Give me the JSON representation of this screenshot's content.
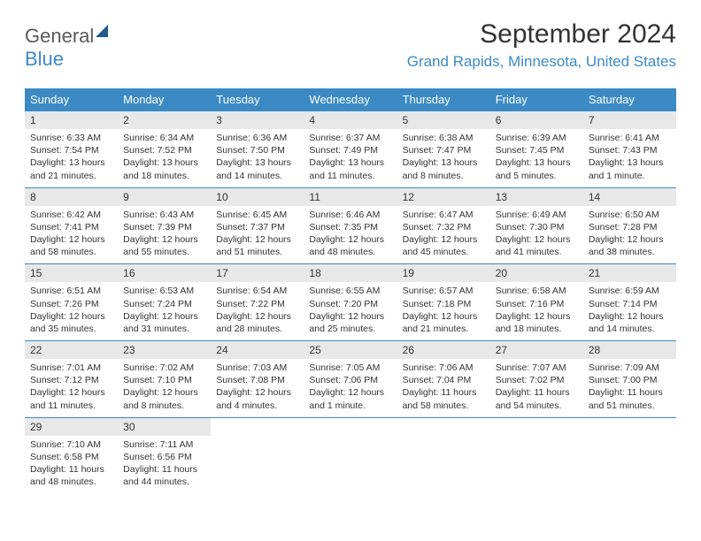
{
  "logo": {
    "part1": "General",
    "part2": "Blue"
  },
  "header": {
    "month_title": "September 2024",
    "location": "Grand Rapids, Minnesota, United States"
  },
  "day_names": [
    "Sunday",
    "Monday",
    "Tuesday",
    "Wednesday",
    "Thursday",
    "Friday",
    "Saturday"
  ],
  "colors": {
    "header_bg": "#3b8ac4",
    "header_text": "#ffffff",
    "daynum_bg": "#e8e8e8",
    "border": "#3b8ac4",
    "text": "#333333",
    "location_text": "#3b8ac4"
  },
  "weeks": [
    [
      {
        "num": "1",
        "sunrise": "Sunrise: 6:33 AM",
        "sunset": "Sunset: 7:54 PM",
        "daylight": "Daylight: 13 hours and 21 minutes."
      },
      {
        "num": "2",
        "sunrise": "Sunrise: 6:34 AM",
        "sunset": "Sunset: 7:52 PM",
        "daylight": "Daylight: 13 hours and 18 minutes."
      },
      {
        "num": "3",
        "sunrise": "Sunrise: 6:36 AM",
        "sunset": "Sunset: 7:50 PM",
        "daylight": "Daylight: 13 hours and 14 minutes."
      },
      {
        "num": "4",
        "sunrise": "Sunrise: 6:37 AM",
        "sunset": "Sunset: 7:49 PM",
        "daylight": "Daylight: 13 hours and 11 minutes."
      },
      {
        "num": "5",
        "sunrise": "Sunrise: 6:38 AM",
        "sunset": "Sunset: 7:47 PM",
        "daylight": "Daylight: 13 hours and 8 minutes."
      },
      {
        "num": "6",
        "sunrise": "Sunrise: 6:39 AM",
        "sunset": "Sunset: 7:45 PM",
        "daylight": "Daylight: 13 hours and 5 minutes."
      },
      {
        "num": "7",
        "sunrise": "Sunrise: 6:41 AM",
        "sunset": "Sunset: 7:43 PM",
        "daylight": "Daylight: 13 hours and 1 minute."
      }
    ],
    [
      {
        "num": "8",
        "sunrise": "Sunrise: 6:42 AM",
        "sunset": "Sunset: 7:41 PM",
        "daylight": "Daylight: 12 hours and 58 minutes."
      },
      {
        "num": "9",
        "sunrise": "Sunrise: 6:43 AM",
        "sunset": "Sunset: 7:39 PM",
        "daylight": "Daylight: 12 hours and 55 minutes."
      },
      {
        "num": "10",
        "sunrise": "Sunrise: 6:45 AM",
        "sunset": "Sunset: 7:37 PM",
        "daylight": "Daylight: 12 hours and 51 minutes."
      },
      {
        "num": "11",
        "sunrise": "Sunrise: 6:46 AM",
        "sunset": "Sunset: 7:35 PM",
        "daylight": "Daylight: 12 hours and 48 minutes."
      },
      {
        "num": "12",
        "sunrise": "Sunrise: 6:47 AM",
        "sunset": "Sunset: 7:32 PM",
        "daylight": "Daylight: 12 hours and 45 minutes."
      },
      {
        "num": "13",
        "sunrise": "Sunrise: 6:49 AM",
        "sunset": "Sunset: 7:30 PM",
        "daylight": "Daylight: 12 hours and 41 minutes."
      },
      {
        "num": "14",
        "sunrise": "Sunrise: 6:50 AM",
        "sunset": "Sunset: 7:28 PM",
        "daylight": "Daylight: 12 hours and 38 minutes."
      }
    ],
    [
      {
        "num": "15",
        "sunrise": "Sunrise: 6:51 AM",
        "sunset": "Sunset: 7:26 PM",
        "daylight": "Daylight: 12 hours and 35 minutes."
      },
      {
        "num": "16",
        "sunrise": "Sunrise: 6:53 AM",
        "sunset": "Sunset: 7:24 PM",
        "daylight": "Daylight: 12 hours and 31 minutes."
      },
      {
        "num": "17",
        "sunrise": "Sunrise: 6:54 AM",
        "sunset": "Sunset: 7:22 PM",
        "daylight": "Daylight: 12 hours and 28 minutes."
      },
      {
        "num": "18",
        "sunrise": "Sunrise: 6:55 AM",
        "sunset": "Sunset: 7:20 PM",
        "daylight": "Daylight: 12 hours and 25 minutes."
      },
      {
        "num": "19",
        "sunrise": "Sunrise: 6:57 AM",
        "sunset": "Sunset: 7:18 PM",
        "daylight": "Daylight: 12 hours and 21 minutes."
      },
      {
        "num": "20",
        "sunrise": "Sunrise: 6:58 AM",
        "sunset": "Sunset: 7:16 PM",
        "daylight": "Daylight: 12 hours and 18 minutes."
      },
      {
        "num": "21",
        "sunrise": "Sunrise: 6:59 AM",
        "sunset": "Sunset: 7:14 PM",
        "daylight": "Daylight: 12 hours and 14 minutes."
      }
    ],
    [
      {
        "num": "22",
        "sunrise": "Sunrise: 7:01 AM",
        "sunset": "Sunset: 7:12 PM",
        "daylight": "Daylight: 12 hours and 11 minutes."
      },
      {
        "num": "23",
        "sunrise": "Sunrise: 7:02 AM",
        "sunset": "Sunset: 7:10 PM",
        "daylight": "Daylight: 12 hours and 8 minutes."
      },
      {
        "num": "24",
        "sunrise": "Sunrise: 7:03 AM",
        "sunset": "Sunset: 7:08 PM",
        "daylight": "Daylight: 12 hours and 4 minutes."
      },
      {
        "num": "25",
        "sunrise": "Sunrise: 7:05 AM",
        "sunset": "Sunset: 7:06 PM",
        "daylight": "Daylight: 12 hours and 1 minute."
      },
      {
        "num": "26",
        "sunrise": "Sunrise: 7:06 AM",
        "sunset": "Sunset: 7:04 PM",
        "daylight": "Daylight: 11 hours and 58 minutes."
      },
      {
        "num": "27",
        "sunrise": "Sunrise: 7:07 AM",
        "sunset": "Sunset: 7:02 PM",
        "daylight": "Daylight: 11 hours and 54 minutes."
      },
      {
        "num": "28",
        "sunrise": "Sunrise: 7:09 AM",
        "sunset": "Sunset: 7:00 PM",
        "daylight": "Daylight: 11 hours and 51 minutes."
      }
    ],
    [
      {
        "num": "29",
        "sunrise": "Sunrise: 7:10 AM",
        "sunset": "Sunset: 6:58 PM",
        "daylight": "Daylight: 11 hours and 48 minutes."
      },
      {
        "num": "30",
        "sunrise": "Sunrise: 7:11 AM",
        "sunset": "Sunset: 6:56 PM",
        "daylight": "Daylight: 11 hours and 44 minutes."
      },
      null,
      null,
      null,
      null,
      null
    ]
  ]
}
